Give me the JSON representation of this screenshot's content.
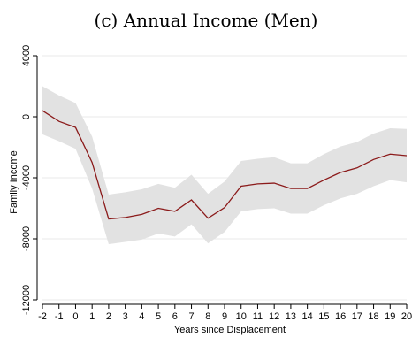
{
  "chart_data": {
    "type": "line",
    "title": "(c) Annual Income (Men)",
    "xlabel": "Years since Displacement",
    "ylabel": "Family Income",
    "xlim": [
      -2,
      20
    ],
    "ylim": [
      -12000,
      4000
    ],
    "x_ticks": [
      -2,
      -1,
      0,
      1,
      2,
      3,
      4,
      5,
      6,
      7,
      8,
      9,
      10,
      11,
      12,
      13,
      14,
      15,
      16,
      17,
      18,
      19,
      20
    ],
    "y_ticks": [
      4000,
      0,
      -4000,
      -8000,
      -12000
    ],
    "grid": true,
    "colors": {
      "line": "#8b1a1a",
      "band": "#e2e2e2"
    },
    "series": [
      {
        "x": [
          -2,
          -1,
          0,
          1,
          2,
          3,
          4,
          5,
          6,
          7,
          8,
          9,
          10,
          11,
          12,
          13,
          14,
          15,
          16,
          17,
          18,
          19,
          20
        ],
        "values": [
          400,
          -300,
          -700,
          -3000,
          -6700,
          -6600,
          -6400,
          -6000,
          -6200,
          -5450,
          -6650,
          -5950,
          -4550,
          -4400,
          -4350,
          -4700,
          -4700,
          -4150,
          -3650,
          -3350,
          -2800,
          -2450,
          -2550
        ],
        "ci_upper": [
          2000,
          1400,
          900,
          -1300,
          -5100,
          -4950,
          -4750,
          -4400,
          -4650,
          -3800,
          -5050,
          -4250,
          -2900,
          -2750,
          -2650,
          -3050,
          -3050,
          -2450,
          -1950,
          -1650,
          -1100,
          -750,
          -800
        ],
        "ci_lower": [
          -1150,
          -1600,
          -2100,
          -4700,
          -8350,
          -8200,
          -8050,
          -7650,
          -7850,
          -7050,
          -8300,
          -7550,
          -6200,
          -6050,
          -6000,
          -6350,
          -6350,
          -5800,
          -5350,
          -5050,
          -4550,
          -4150,
          -4300
        ]
      }
    ]
  }
}
